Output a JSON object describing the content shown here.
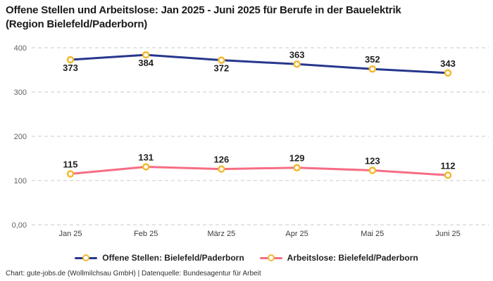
{
  "title": {
    "line1": "Offene Stellen und Arbeitslose: Jan 2025 - Juni 2025 für Berufe in der Bauelektrik",
    "line2": "(Region Bielefeld/Paderborn)"
  },
  "chart_data": {
    "type": "line",
    "categories": [
      "Jan 25",
      "Feb 25",
      "März 25",
      "Apr 25",
      "Mai 25",
      "Juni 25"
    ],
    "series": [
      {
        "name": "Offene Stellen: Bielefeld/Paderborn",
        "values": [
          373,
          384,
          372,
          363,
          352,
          343
        ],
        "color": "#27378c",
        "label_positions": [
          "below",
          "below",
          "below",
          "above",
          "above",
          "above"
        ]
      },
      {
        "name": "Arbeitslose: Bielefeld/Paderborn",
        "values": [
          115,
          131,
          126,
          129,
          123,
          112
        ],
        "color": "#f66d84",
        "label_positions": [
          "above",
          "above",
          "above",
          "above",
          "above",
          "above"
        ]
      }
    ],
    "marker": {
      "shape": "circle",
      "ring_color": "#f2b92f",
      "fill": "#ffffff"
    },
    "yticks": [
      {
        "value": 400,
        "label": "400"
      },
      {
        "value": 300,
        "label": "300"
      },
      {
        "value": 200,
        "label": "200"
      },
      {
        "value": 100,
        "label": "100"
      },
      {
        "value": 0,
        "label": "0,00"
      }
    ],
    "ylim": [
      0,
      400
    ],
    "grid": "dashed-horizontal",
    "gridline_color": "#c9c9c9",
    "legend_position": "bottom-center",
    "xlabel": "",
    "ylabel": ""
  },
  "footer": {
    "text": "Chart: gute-jobs.de (Wollmilchsau GmbH) | Datenquelle: Bundesagentur für Arbeit"
  }
}
